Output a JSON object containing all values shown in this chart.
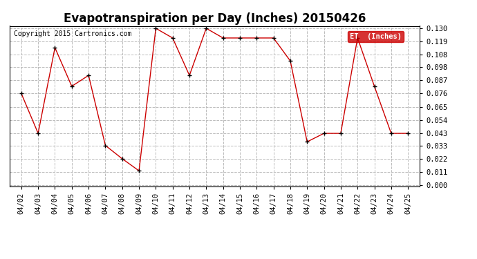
{
  "title": "Evapotranspiration per Day (Inches) 20150426",
  "copyright_text": "Copyright 2015 Cartronics.com",
  "legend_label": "ET  (Inches)",
  "legend_bg": "#cc0000",
  "legend_fg": "#ffffff",
  "x_labels": [
    "04/02",
    "04/03",
    "04/04",
    "04/05",
    "04/06",
    "04/07",
    "04/08",
    "04/09",
    "04/10",
    "04/11",
    "04/12",
    "04/13",
    "04/14",
    "04/15",
    "04/16",
    "04/17",
    "04/18",
    "04/19",
    "04/20",
    "04/21",
    "04/22",
    "04/23",
    "04/24",
    "04/25"
  ],
  "y_values": [
    0.076,
    0.043,
    0.114,
    0.082,
    0.091,
    0.033,
    0.022,
    0.012,
    0.13,
    0.122,
    0.091,
    0.13,
    0.122,
    0.122,
    0.122,
    0.122,
    0.103,
    0.036,
    0.043,
    0.043,
    0.122,
    0.082,
    0.043,
    0.043
  ],
  "line_color": "#cc0000",
  "marker_color": "#000000",
  "ylim_min": 0.0,
  "ylim_max": 0.13,
  "yticks": [
    0.0,
    0.011,
    0.022,
    0.033,
    0.043,
    0.054,
    0.065,
    0.076,
    0.087,
    0.098,
    0.108,
    0.119,
    0.13
  ],
  "bg_color": "#ffffff",
  "grid_color": "#bbbbbb",
  "title_fontsize": 12,
  "tick_fontsize": 7.5,
  "copyright_fontsize": 7
}
